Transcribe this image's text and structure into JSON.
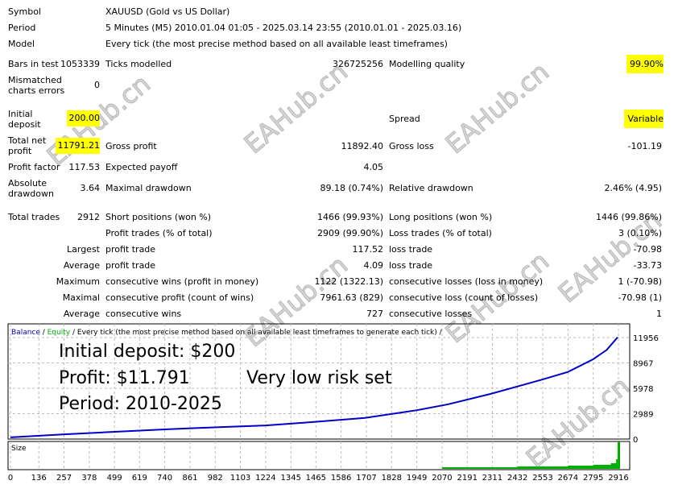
{
  "report": {
    "symbol_label": "Symbol",
    "symbol_value": "XAUUSD (Gold vs US Dollar)",
    "period_label": "Period",
    "period_value": "5 Minutes (M5) 2010.01.04 01:05 - 2025.03.14 23:55 (2010.01.01 - 2025.03.16)",
    "model_label": "Model",
    "model_value": "Every tick (the most precise method based on all available least timeframes)",
    "bars_label": "Bars in test",
    "bars_value": "1053339",
    "ticks_label": "Ticks modelled",
    "ticks_value": "326725256",
    "quality_label": "Modelling quality",
    "quality_value": "99.90%",
    "mismatch_label1": "Mismatched",
    "mismatch_label2": "charts errors",
    "mismatch_value": "0",
    "deposit_label1": "Initial",
    "deposit_label2": "deposit",
    "deposit_value": "200.00",
    "spread_label": "Spread",
    "spread_value": "Variable",
    "netprofit_label1": "Total net",
    "netprofit_label2": "profit",
    "netprofit_value": "11791.21",
    "grossprofit_label": "Gross profit",
    "grossprofit_value": "11892.40",
    "grossloss_label": "Gross loss",
    "grossloss_value": "-101.19",
    "pf_label": "Profit factor",
    "pf_value": "117.53",
    "payoff_label": "Expected payoff",
    "payoff_value": "4.05",
    "absdd_label1": "Absolute",
    "absdd_label2": "drawdown",
    "absdd_value": "3.64",
    "maxdd_label": "Maximal drawdown",
    "maxdd_value": "89.18 (0.74%)",
    "reldd_label": "Relative drawdown",
    "reldd_value": "2.46% (4.95)",
    "trades_label": "Total trades",
    "trades_value": "2912",
    "short_label": "Short positions (won %)",
    "short_value": "1466 (99.93%)",
    "long_label": "Long positions (won %)",
    "long_value": "1446 (99.86%)",
    "ptrades_label": "Profit trades (% of total)",
    "ptrades_value": "2909 (99.90%)",
    "ltrades_label": "Loss trades (% of total)",
    "ltrades_value": "3 (0.10%)",
    "largest_label": "Largest",
    "largest_p_label": "profit trade",
    "largest_p_value": "117.52",
    "largest_l_label": "loss trade",
    "largest_l_value": "-70.98",
    "average_label": "Average",
    "average_p_label": "profit trade",
    "average_p_value": "4.09",
    "average_l_label": "loss trade",
    "average_l_value": "-33.73",
    "maximum_label": "Maximum",
    "maxw_label": "consecutive wins (profit in money)",
    "maxw_value": "1122 (1322.13)",
    "maxl_label": "consecutive losses (loss in money)",
    "maxl_value": "1 (-70.98)",
    "maximal_label": "Maximal",
    "maxlw_label": "consecutive profit (count of wins)",
    "maxlw_value": "7961.63 (829)",
    "maxll_label": "consecutive loss (count of losses)",
    "maxll_value": "-70.98 (1)",
    "avgc_label": "Average",
    "avgw_label": "consecutive wins",
    "avgw_value": "727",
    "avgl_label": "consecutive losses",
    "avgl_value": "1"
  },
  "watermark": "EAHub.cn",
  "chart_data": {
    "type": "line",
    "legend": {
      "balance": "Balance",
      "equity": "Equity",
      "model": "/ Every tick (the most precise method based on all available least timeframes to generate each tick) /"
    },
    "annotations": [
      "Initial deposit: $200",
      "Profit: $11.791",
      "Very low risk set",
      "Period: 2010-2025"
    ],
    "yticks": [
      "11956",
      "8967",
      "5978",
      "2989",
      "0"
    ],
    "xticks": [
      "0",
      "136",
      "257",
      "378",
      "499",
      "619",
      "740",
      "861",
      "982",
      "1103",
      "1224",
      "1345",
      "1465",
      "1586",
      "1707",
      "1828",
      "1949",
      "2070",
      "2191",
      "2311",
      "2432",
      "2553",
      "2674",
      "2795",
      "2916"
    ],
    "size_label": "Size",
    "ylim": [
      0,
      11956
    ],
    "balance_color": "#0000c8",
    "equity_color": "#00b000",
    "balance": [
      [
        0,
        200
      ],
      [
        250,
        550
      ],
      [
        500,
        850
      ],
      [
        750,
        1150
      ],
      [
        1000,
        1400
      ],
      [
        1224,
        1600
      ],
      [
        1450,
        2000
      ],
      [
        1700,
        2500
      ],
      [
        1949,
        3400
      ],
      [
        2100,
        4100
      ],
      [
        2300,
        5300
      ],
      [
        2432,
        6200
      ],
      [
        2550,
        7000
      ],
      [
        2674,
        7900
      ],
      [
        2795,
        9400
      ],
      [
        2860,
        10500
      ],
      [
        2912,
        11991
      ]
    ]
  }
}
